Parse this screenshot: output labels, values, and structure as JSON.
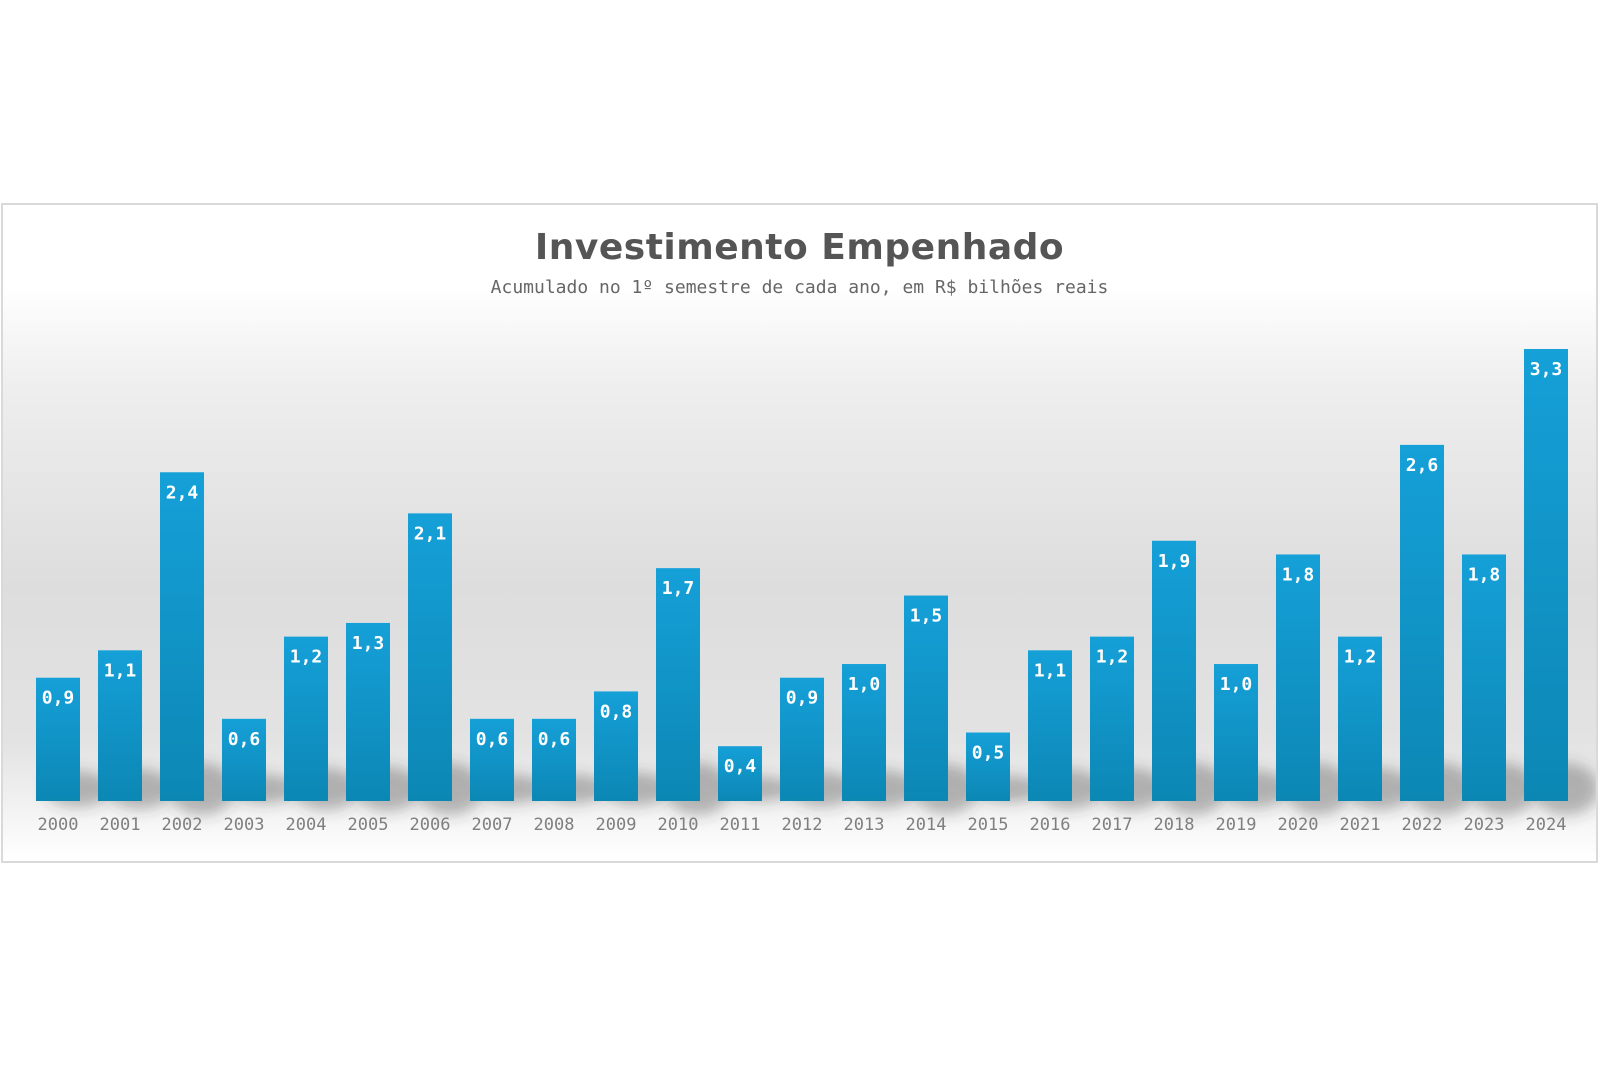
{
  "chart_data": {
    "type": "bar",
    "title": "Investimento Empenhado",
    "subtitle": "Acumulado no 1º semestre de cada ano, em R$ bilhões reais",
    "xlabel": "",
    "ylabel": "",
    "categories": [
      "2000",
      "2001",
      "2002",
      "2003",
      "2004",
      "2005",
      "2006",
      "2007",
      "2008",
      "2009",
      "2010",
      "2011",
      "2012",
      "2013",
      "2014",
      "2015",
      "2016",
      "2017",
      "2018",
      "2019",
      "2020",
      "2021",
      "2022",
      "2023",
      "2024"
    ],
    "values": [
      0.9,
      1.1,
      2.4,
      0.6,
      1.2,
      1.3,
      2.1,
      0.6,
      0.6,
      0.8,
      1.7,
      0.4,
      0.9,
      1.0,
      1.5,
      0.5,
      1.1,
      1.2,
      1.9,
      1.0,
      1.8,
      1.2,
      2.6,
      1.8,
      3.3
    ],
    "data_labels": [
      "0,9",
      "1,1",
      "2,4",
      "0,6",
      "1,2",
      "1,3",
      "2,1",
      "0,6",
      "0,6",
      "0,8",
      "1,7",
      "0,4",
      "0,9",
      "1,0",
      "1,5",
      "0,5",
      "1,1",
      "1,2",
      "1,9",
      "1,0",
      "1,8",
      "1,2",
      "2,6",
      "1,8",
      "3,3"
    ],
    "ylim": [
      0,
      3.3
    ],
    "grid": false,
    "legend": "none",
    "colors": {
      "bar_top": "#15a0d8",
      "bar_bottom": "#0c87b4",
      "label": "#ffffff",
      "tick": "#7f7f7f",
      "title": "#555555",
      "subtitle": "#666666"
    }
  }
}
